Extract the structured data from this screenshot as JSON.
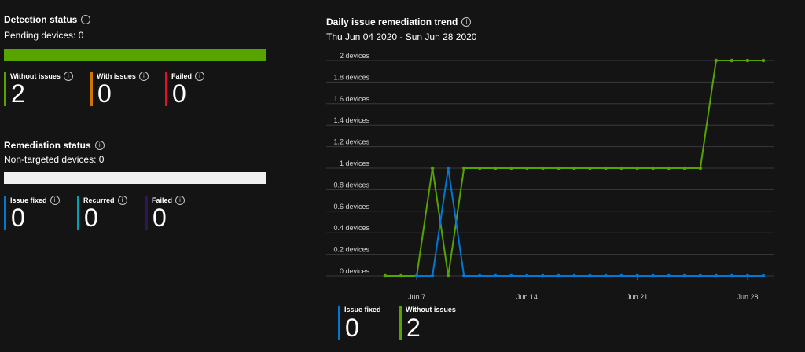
{
  "detection": {
    "title": "Detection status",
    "info_icon": "info-icon",
    "pending": "Pending devices: 0",
    "bar_color": "#57a300",
    "stats": [
      {
        "label": "Without issues",
        "value": "2",
        "color": "#57a300"
      },
      {
        "label": "With issues",
        "value": "0",
        "color": "#d47500"
      },
      {
        "label": "Failed",
        "value": "0",
        "color": "#e81123"
      }
    ]
  },
  "remediation": {
    "title": "Remediation status",
    "info_icon": "info-icon",
    "non_targeted": "Non-targeted devices: 0",
    "bar_color": "#f0f0f0",
    "stats": [
      {
        "label": "Issue fixed",
        "value": "0",
        "color": "#0078d4"
      },
      {
        "label": "Recurred",
        "value": "0",
        "color": "#00a3b4"
      },
      {
        "label": "Failed",
        "value": "0",
        "color": "#32145a"
      }
    ]
  },
  "trend": {
    "title": "Daily issue remediation trend",
    "info_icon": "info-icon",
    "date_range": "Thu Jun 04 2020 - Sun Jun 28 2020",
    "legend": [
      {
        "label": "Issue fixed",
        "value": "0",
        "color": "#0078d4"
      },
      {
        "label": "Without issues",
        "value": "2",
        "color": "#57a300"
      }
    ]
  },
  "chart_data": {
    "type": "line",
    "x": [
      "Jun 5",
      "Jun 6",
      "Jun 7",
      "Jun 8",
      "Jun 9",
      "Jun 10",
      "Jun 11",
      "Jun 12",
      "Jun 13",
      "Jun 14",
      "Jun 15",
      "Jun 16",
      "Jun 17",
      "Jun 18",
      "Jun 19",
      "Jun 20",
      "Jun 21",
      "Jun 22",
      "Jun 23",
      "Jun 24",
      "Jun 25",
      "Jun 26",
      "Jun 27",
      "Jun 28",
      "Jun 29"
    ],
    "x_ticks": [
      "Jun 7",
      "Jun 14",
      "Jun 21",
      "Jun 28"
    ],
    "y_ticks": [
      "0 devices",
      "0.2 devices",
      "0.4 devices",
      "0.6 devices",
      "0.8 devices",
      "1 devices",
      "1.2 devices",
      "1.4 devices",
      "1.6 devices",
      "1.8 devices",
      "2 devices"
    ],
    "ylim": [
      0,
      2
    ],
    "grid": true,
    "series": [
      {
        "name": "Without issues",
        "color": "#57a300",
        "values": [
          0,
          0,
          0,
          1,
          0,
          1,
          1,
          1,
          1,
          1,
          1,
          1,
          1,
          1,
          1,
          1,
          1,
          1,
          1,
          1,
          1,
          2,
          2,
          2,
          2
        ]
      },
      {
        "name": "Issue fixed",
        "color": "#0078d4",
        "values": [
          null,
          null,
          0,
          0,
          1,
          0,
          0,
          0,
          0,
          0,
          0,
          0,
          0,
          0,
          0,
          0,
          0,
          0,
          0,
          0,
          0,
          0,
          0,
          0,
          0
        ]
      }
    ]
  }
}
